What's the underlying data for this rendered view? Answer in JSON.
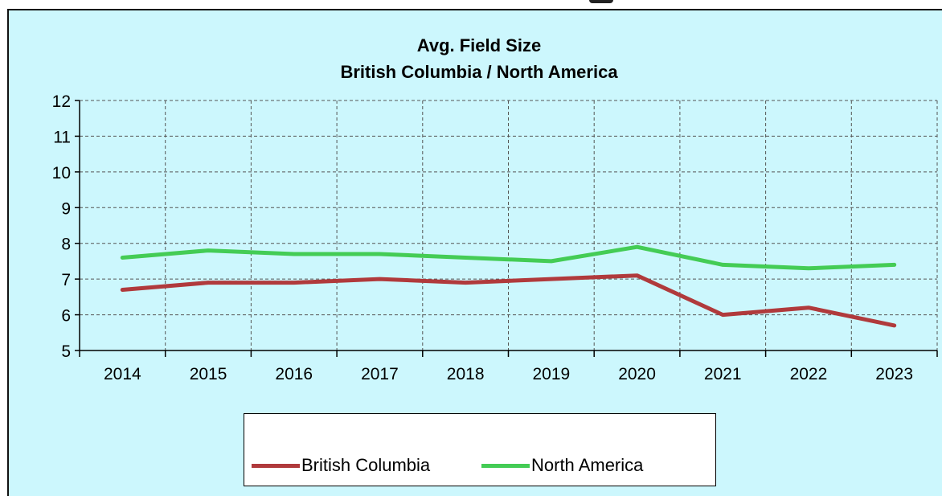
{
  "chart_data": {
    "type": "line",
    "title": "Avg. Field Size",
    "subtitle": "British Columbia / North America",
    "xlabel": "",
    "ylabel": "",
    "categories": [
      "2014",
      "2015",
      "2016",
      "2017",
      "2018",
      "2019",
      "2020",
      "2021",
      "2022",
      "2023"
    ],
    "yticks": [
      "5",
      "6",
      "7",
      "8",
      "9",
      "10",
      "11",
      "12"
    ],
    "ylim": [
      5,
      12
    ],
    "grid": true,
    "legend_position": "bottom",
    "series": [
      {
        "name": "British Columbia",
        "color": "#b03a3c",
        "values": [
          6.7,
          6.9,
          6.9,
          7.0,
          6.9,
          7.0,
          7.1,
          6.0,
          6.2,
          5.7
        ]
      },
      {
        "name": "North America",
        "color": "#44cc55",
        "values": [
          7.6,
          7.8,
          7.7,
          7.7,
          7.6,
          7.5,
          7.9,
          7.4,
          7.3,
          7.4
        ]
      }
    ]
  },
  "legend": {
    "items": [
      {
        "label": "British Columbia",
        "color": "#b03a3c"
      },
      {
        "label": "North America",
        "color": "#44cc55"
      }
    ]
  }
}
